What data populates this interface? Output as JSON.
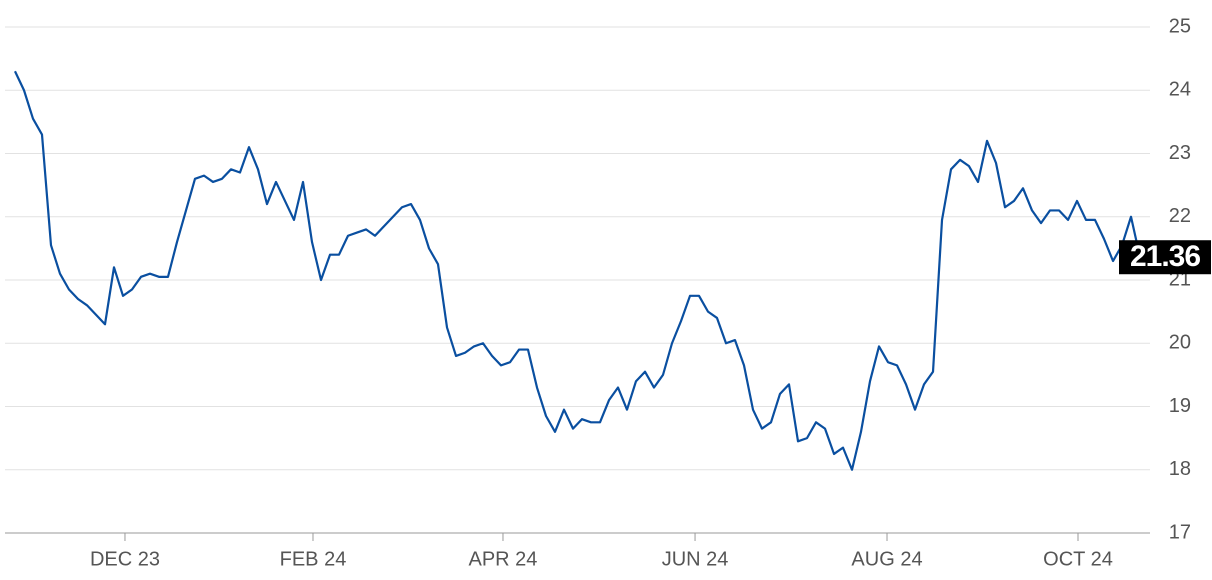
{
  "chart_data": {
    "type": "line",
    "series": [
      {
        "color": "#0a4fa0",
        "values": [
          24.3,
          24.0,
          23.55,
          23.3,
          21.55,
          21.1,
          20.85,
          20.7,
          20.6,
          20.45,
          20.3,
          21.2,
          20.75,
          20.85,
          21.05,
          21.1,
          21.05,
          21.05,
          21.6,
          22.1,
          22.6,
          22.65,
          22.55,
          22.6,
          22.75,
          22.7,
          23.1,
          22.75,
          22.2,
          22.55,
          22.25,
          21.95,
          22.55,
          21.6,
          21.0,
          21.4,
          21.4,
          21.7,
          21.75,
          21.8,
          21.7,
          21.85,
          22.0,
          22.15,
          22.2,
          21.95,
          21.5,
          21.25,
          20.25,
          19.8,
          19.85,
          19.95,
          20.0,
          19.8,
          19.65,
          19.7,
          19.9,
          19.9,
          19.3,
          18.85,
          18.6,
          18.95,
          18.65,
          18.8,
          18.75,
          18.75,
          19.1,
          19.3,
          18.95,
          19.4,
          19.55,
          19.3,
          19.5,
          20.0,
          20.35,
          20.75,
          20.75,
          20.5,
          20.4,
          20.0,
          20.05,
          19.65,
          18.95,
          18.65,
          18.75,
          19.2,
          19.35,
          18.45,
          18.5,
          18.75,
          18.65,
          18.25,
          18.35,
          18.0,
          18.6,
          19.4,
          19.95,
          19.7,
          19.65,
          19.35,
          18.95,
          19.35,
          19.55,
          21.95,
          22.75,
          22.9,
          22.8,
          22.55,
          23.2,
          22.85,
          22.15,
          22.25,
          22.45,
          22.1,
          21.9,
          22.1,
          22.1,
          21.95,
          22.25,
          21.95,
          21.95,
          21.65,
          21.3,
          21.55,
          22.0,
          21.36
        ]
      }
    ],
    "xlim": [
      -1.11,
      126.11
    ],
    "xticks": [
      {
        "value": 12.22,
        "label": "DEC 23"
      },
      {
        "value": 33.11,
        "label": "FEB 24"
      },
      {
        "value": 54.22,
        "label": "APR 24"
      },
      {
        "value": 75.56,
        "label": "JUN 24"
      },
      {
        "value": 96.89,
        "label": "AUG 24"
      },
      {
        "value": 118.11,
        "label": "OCT 24"
      }
    ],
    "ylim": [
      17,
      25
    ],
    "yticks": [
      17,
      18,
      19,
      20,
      21,
      22,
      23,
      24,
      25
    ],
    "grid": true
  }
}
